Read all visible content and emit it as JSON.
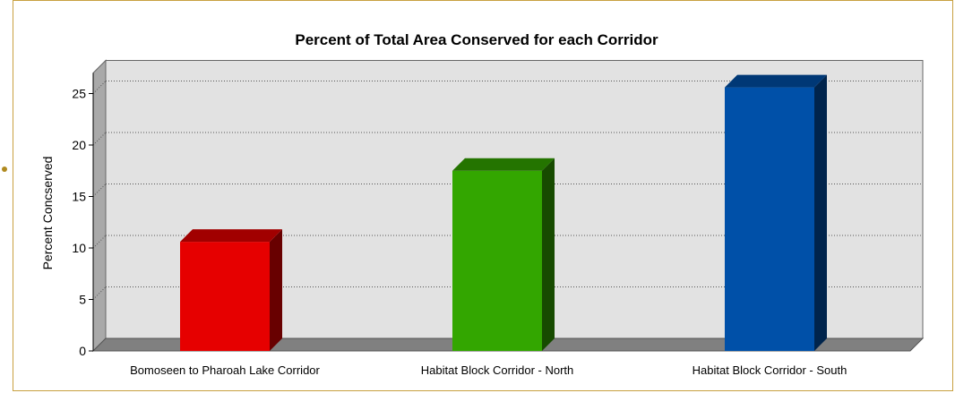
{
  "chart_data": {
    "type": "bar",
    "title": "Percent of Total Area Conserved for each Corridor",
    "ylabel": "Percent Concserved",
    "xlabel": "",
    "categories": [
      "Bomoseen to Pharoah Lake Corridor",
      "Habitat Block Corridor - North",
      "Habitat Block Corridor - South"
    ],
    "values": [
      10.6,
      17.5,
      25.6
    ],
    "colors": [
      "#e60000",
      "#33a600",
      "#0050a8"
    ],
    "ylim": [
      0,
      27
    ],
    "yticks": [
      0,
      5,
      10,
      15,
      20,
      25
    ],
    "grid": true,
    "style": "3d"
  }
}
